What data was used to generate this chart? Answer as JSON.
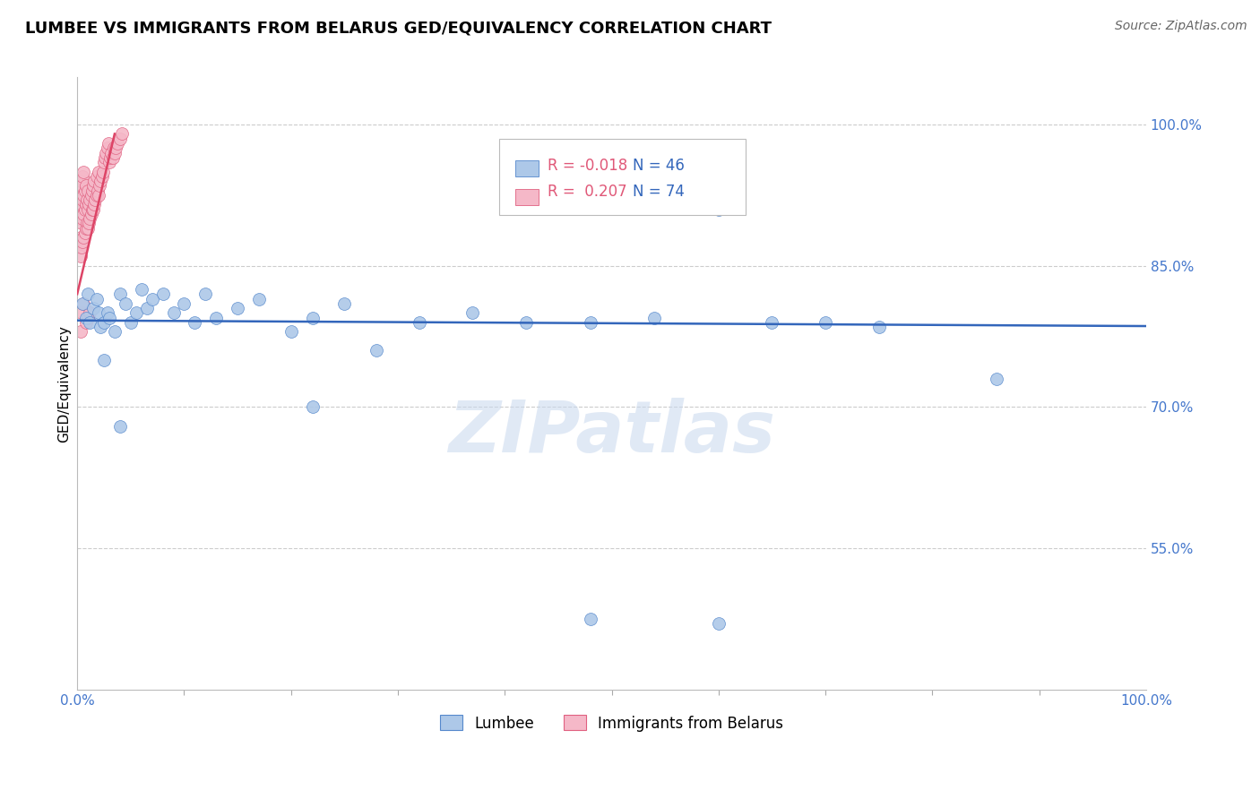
{
  "title": "LUMBEE VS IMMIGRANTS FROM BELARUS GED/EQUIVALENCY CORRELATION CHART",
  "source": "Source: ZipAtlas.com",
  "ylabel": "GED/Equivalency",
  "legend_lumbee": "Lumbee",
  "legend_belarus": "Immigrants from Belarus",
  "R_lumbee": -0.018,
  "N_lumbee": 46,
  "R_belarus": 0.207,
  "N_belarus": 74,
  "lumbee_color": "#adc8e8",
  "lumbee_edge_color": "#5588cc",
  "belarus_color": "#f5b8c8",
  "belarus_edge_color": "#e06080",
  "lumbee_line_color": "#3366bb",
  "belarus_line_color": "#dd4466",
  "grid_color": "#cccccc",
  "watermark": "ZIPatlas",
  "xlim": [
    0.0,
    1.0
  ],
  "ylim": [
    0.4,
    1.05
  ],
  "yticks": [
    0.55,
    0.7,
    0.85,
    1.0
  ],
  "ytick_labels": [
    "55.0%",
    "70.0%",
    "85.0%",
    "100.0%"
  ],
  "xtick_labels": [
    "0.0%",
    "100.0%"
  ],
  "lumbee_x": [
    0.005,
    0.008,
    0.01,
    0.012,
    0.015,
    0.018,
    0.02,
    0.022,
    0.025,
    0.028,
    0.03,
    0.035,
    0.04,
    0.045,
    0.05,
    0.055,
    0.06,
    0.065,
    0.07,
    0.08,
    0.09,
    0.1,
    0.11,
    0.12,
    0.13,
    0.15,
    0.17,
    0.2,
    0.22,
    0.25,
    0.28,
    0.32,
    0.37,
    0.42,
    0.48,
    0.54,
    0.6,
    0.65,
    0.7,
    0.75,
    0.86,
    0.025,
    0.04,
    0.22,
    0.48,
    0.6
  ],
  "lumbee_y": [
    0.81,
    0.795,
    0.82,
    0.79,
    0.805,
    0.815,
    0.8,
    0.785,
    0.79,
    0.8,
    0.795,
    0.78,
    0.82,
    0.81,
    0.79,
    0.8,
    0.825,
    0.805,
    0.815,
    0.82,
    0.8,
    0.81,
    0.79,
    0.82,
    0.795,
    0.805,
    0.815,
    0.78,
    0.795,
    0.81,
    0.76,
    0.79,
    0.8,
    0.79,
    0.79,
    0.795,
    0.91,
    0.79,
    0.79,
    0.785,
    0.73,
    0.75,
    0.68,
    0.7,
    0.475,
    0.47
  ],
  "belarus_x": [
    0.002,
    0.002,
    0.002,
    0.003,
    0.003,
    0.003,
    0.003,
    0.003,
    0.004,
    0.004,
    0.004,
    0.004,
    0.005,
    0.005,
    0.005,
    0.005,
    0.006,
    0.006,
    0.006,
    0.006,
    0.007,
    0.007,
    0.007,
    0.008,
    0.008,
    0.008,
    0.009,
    0.009,
    0.01,
    0.01,
    0.01,
    0.011,
    0.011,
    0.012,
    0.012,
    0.013,
    0.013,
    0.014,
    0.014,
    0.015,
    0.015,
    0.016,
    0.016,
    0.017,
    0.018,
    0.018,
    0.019,
    0.02,
    0.02,
    0.021,
    0.022,
    0.023,
    0.024,
    0.025,
    0.026,
    0.027,
    0.028,
    0.029,
    0.03,
    0.031,
    0.032,
    0.033,
    0.034,
    0.035,
    0.036,
    0.038,
    0.04,
    0.042,
    0.003,
    0.004,
    0.006,
    0.008,
    0.01,
    0.012
  ],
  "belarus_y": [
    0.87,
    0.9,
    0.92,
    0.86,
    0.88,
    0.905,
    0.925,
    0.94,
    0.87,
    0.895,
    0.915,
    0.935,
    0.875,
    0.9,
    0.92,
    0.945,
    0.88,
    0.905,
    0.925,
    0.95,
    0.885,
    0.91,
    0.93,
    0.89,
    0.915,
    0.935,
    0.895,
    0.92,
    0.89,
    0.91,
    0.93,
    0.895,
    0.915,
    0.9,
    0.92,
    0.905,
    0.925,
    0.91,
    0.93,
    0.91,
    0.935,
    0.915,
    0.94,
    0.92,
    0.925,
    0.945,
    0.93,
    0.925,
    0.95,
    0.935,
    0.94,
    0.945,
    0.95,
    0.96,
    0.965,
    0.97,
    0.975,
    0.98,
    0.96,
    0.965,
    0.97,
    0.965,
    0.975,
    0.97,
    0.975,
    0.98,
    0.985,
    0.99,
    0.78,
    0.8,
    0.81,
    0.79,
    0.795,
    0.8
  ],
  "belarus_line_x": [
    0.0,
    0.035
  ],
  "belarus_line_y_start": 0.82,
  "belarus_line_y_end": 0.99
}
